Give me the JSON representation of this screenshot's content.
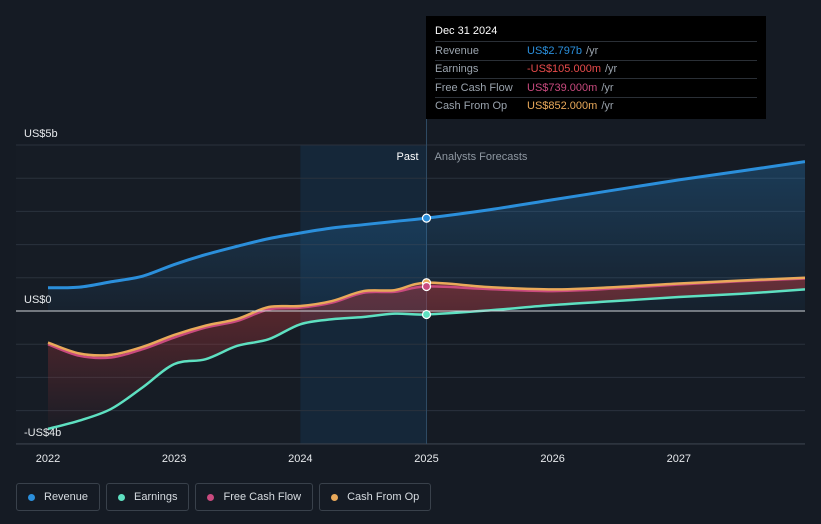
{
  "colors": {
    "revenue": "#2b8fdb",
    "earnings": "#5ee0c1",
    "free_cash_flow": "#c94a7e",
    "cash_from_op": "#e9a95a",
    "background": "#151b24"
  },
  "tooltip": {
    "date": "Dec 31 2024",
    "rows": [
      {
        "label": "Revenue",
        "value": "US$2.797b",
        "unit": "/yr",
        "color": "#2b8fdb"
      },
      {
        "label": "Earnings",
        "value": "-US$105.000m",
        "unit": "/yr",
        "color": "#e84b4b"
      },
      {
        "label": "Free Cash Flow",
        "value": "US$739.000m",
        "unit": "/yr",
        "color": "#c94a7e"
      },
      {
        "label": "Cash From Op",
        "value": "US$852.000m",
        "unit": "/yr",
        "color": "#e9a95a"
      }
    ]
  },
  "legend": [
    {
      "label": "Revenue",
      "color": "#2b8fdb"
    },
    {
      "label": "Earnings",
      "color": "#5ee0c1"
    },
    {
      "label": "Free Cash Flow",
      "color": "#c94a7e"
    },
    {
      "label": "Cash From Op",
      "color": "#e9a95a"
    }
  ],
  "chart_data": {
    "type": "line",
    "title": "",
    "xlabel": "",
    "ylabel": "",
    "y_tick_labels": [
      "US$5b",
      "US$0",
      "-US$4b"
    ],
    "x_tick_labels": [
      "2022",
      "2023",
      "2024",
      "2025",
      "2026",
      "2027"
    ],
    "ylim": [
      -4,
      5
    ],
    "xlim": [
      2022,
      2028
    ],
    "divider_x": 2025,
    "past_label": "Past",
    "forecast_label": "Analysts Forecasts",
    "grid": true,
    "legend_position": "bottom-left",
    "series": [
      {
        "name": "Revenue",
        "x": [
          2022,
          2022.25,
          2022.5,
          2022.75,
          2023,
          2023.25,
          2023.5,
          2023.75,
          2024,
          2024.25,
          2024.5,
          2024.75,
          2025,
          2025.5,
          2026,
          2026.5,
          2027,
          2027.5,
          2028
        ],
        "values": [
          0.7,
          0.72,
          0.88,
          1.05,
          1.4,
          1.7,
          1.95,
          2.18,
          2.35,
          2.5,
          2.6,
          2.7,
          2.797,
          3.05,
          3.35,
          3.65,
          3.95,
          4.22,
          4.5
        ]
      },
      {
        "name": "Earnings",
        "x": [
          2022,
          2022.25,
          2022.5,
          2022.75,
          2023,
          2023.25,
          2023.5,
          2023.75,
          2024,
          2024.25,
          2024.5,
          2024.75,
          2025,
          2025.5,
          2026,
          2026.5,
          2027,
          2027.5,
          2028
        ],
        "values": [
          -3.55,
          -3.3,
          -2.95,
          -2.3,
          -1.6,
          -1.45,
          -1.05,
          -0.85,
          -0.4,
          -0.25,
          -0.18,
          -0.08,
          -0.105,
          0.02,
          0.18,
          0.3,
          0.42,
          0.52,
          0.65
        ]
      },
      {
        "name": "Free Cash Flow",
        "x": [
          2022,
          2022.25,
          2022.5,
          2022.75,
          2023,
          2023.25,
          2023.5,
          2023.75,
          2024,
          2024.25,
          2024.5,
          2024.75,
          2025,
          2025.5,
          2026,
          2026.5,
          2027,
          2027.5,
          2028
        ],
        "values": [
          -1.0,
          -1.35,
          -1.4,
          -1.15,
          -0.8,
          -0.5,
          -0.3,
          0.05,
          0.1,
          0.25,
          0.55,
          0.58,
          0.739,
          0.66,
          0.6,
          0.68,
          0.8,
          0.9,
          0.98
        ]
      },
      {
        "name": "Cash From Op",
        "x": [
          2022,
          2022.25,
          2022.5,
          2022.75,
          2023,
          2023.25,
          2023.5,
          2023.75,
          2024,
          2024.25,
          2024.5,
          2024.75,
          2025,
          2025.5,
          2026,
          2026.5,
          2027,
          2027.5,
          2028
        ],
        "values": [
          -0.95,
          -1.28,
          -1.32,
          -1.08,
          -0.72,
          -0.44,
          -0.24,
          0.12,
          0.15,
          0.3,
          0.6,
          0.63,
          0.852,
          0.72,
          0.65,
          0.72,
          0.83,
          0.92,
          1.0
        ]
      }
    ]
  }
}
